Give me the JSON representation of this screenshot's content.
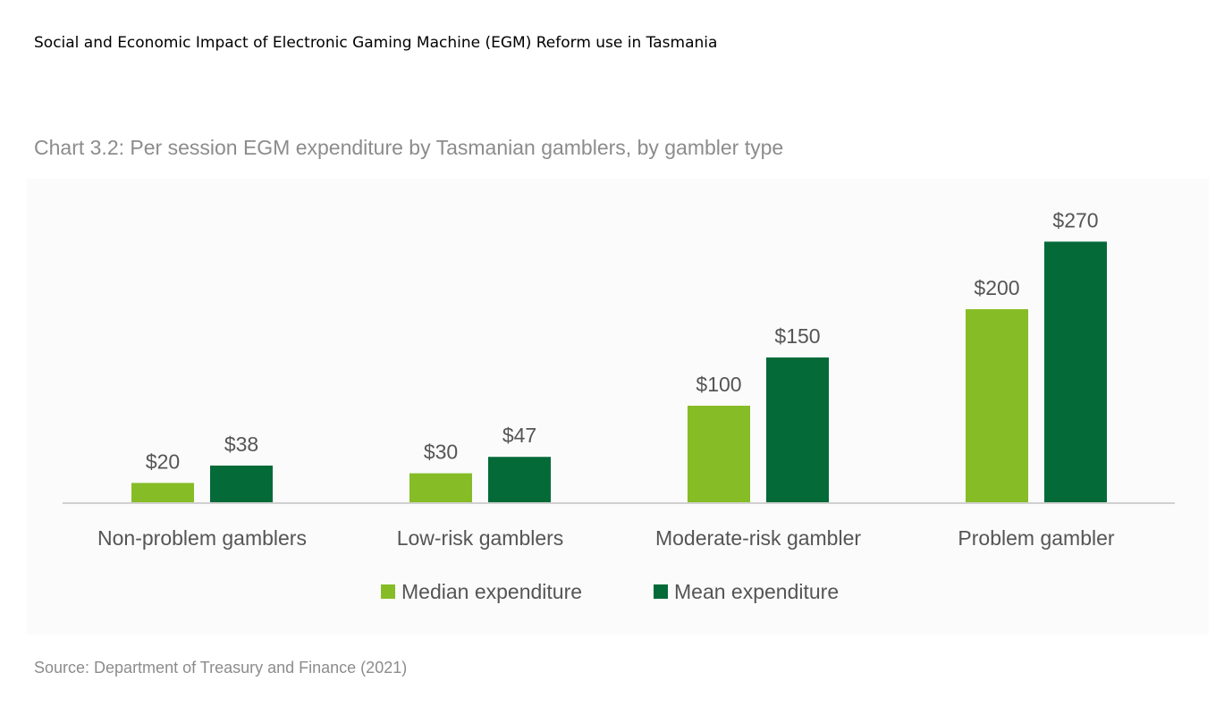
{
  "header": {
    "text": "Social and Economic Impact of Electronic Gaming Machine (EGM) Reform use in Tasmania"
  },
  "chart_data": {
    "type": "bar",
    "title": "Chart 3.2: Per session EGM expenditure by Tasmanian gamblers, by gambler type",
    "categories": [
      "Non-problem gamblers",
      "Low-risk gamblers",
      "Moderate-risk gambler",
      "Problem gambler"
    ],
    "series": [
      {
        "name": "Median expenditure",
        "values": [
          20,
          30,
          100,
          200
        ],
        "labels": [
          "$20",
          "$30",
          "$100",
          "$200"
        ],
        "color": "#86bc25"
      },
      {
        "name": "Mean expenditure",
        "values": [
          38,
          47,
          150,
          270
        ],
        "labels": [
          "$38",
          "$47",
          "$150",
          "$270"
        ],
        "color": "#046a38"
      }
    ],
    "ylim": [
      0,
      290
    ],
    "grid": false,
    "legend_position": "bottom-center",
    "axis_color": "#d0d0d0",
    "label_color": "#555555"
  },
  "source": {
    "text": "Source: Department of Treasury and Finance (2021)"
  }
}
